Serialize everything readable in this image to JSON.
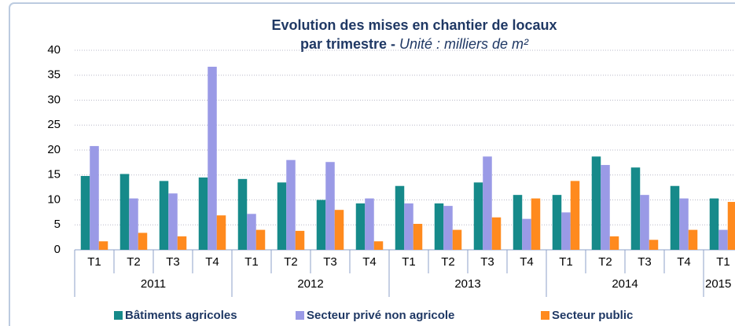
{
  "chart_data": {
    "type": "bar",
    "title": "Evolution des mises en chantier de locaux",
    "subtitle": "par trimestre - ",
    "subtitle_unit": "Unité : milliers de m²",
    "categories": [
      "T1",
      "T2",
      "T3",
      "T4",
      "T1",
      "T2",
      "T3",
      "T4",
      "T1",
      "T2",
      "T3",
      "T4",
      "T1",
      "T2",
      "T3",
      "T4",
      "T1"
    ],
    "years": [
      "2011",
      "2012",
      "2013",
      "2014",
      "2015"
    ],
    "series": [
      {
        "name": "Bâtiments agricoles",
        "color": "#168a8a",
        "values": [
          14.8,
          15.2,
          13.8,
          14.5,
          14.2,
          13.5,
          10,
          9.3,
          12.8,
          9.3,
          13.5,
          11,
          11,
          18.7,
          16.5,
          12.8,
          10.3
        ]
      },
      {
        "name": "Secteur privé non agricole",
        "color": "#9a9ae6",
        "values": [
          20.8,
          10.3,
          11.3,
          36.7,
          7.2,
          18,
          17.6,
          10.3,
          9.3,
          8.8,
          18.7,
          6.2,
          7.5,
          17,
          11,
          10.3,
          4
        ]
      },
      {
        "name": "Secteur public",
        "color": "#ff8a1e",
        "values": [
          1.7,
          3.4,
          2.7,
          6.9,
          4,
          3.8,
          8,
          1.7,
          5.2,
          4,
          6.5,
          10.3,
          13.8,
          2.7,
          2,
          4,
          9.6
        ]
      }
    ],
    "ylim": [
      0,
      40
    ],
    "yticks": [
      0,
      5,
      10,
      15,
      20,
      25,
      30,
      35,
      40
    ],
    "grid": true
  }
}
